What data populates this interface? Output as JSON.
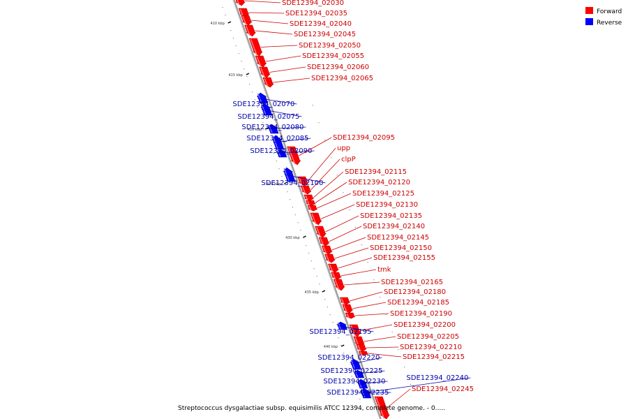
{
  "colors": {
    "forward": "#ff0000",
    "forward_dark": "#b80000",
    "forward_light": "#ff8080",
    "reverse": "#0000ff",
    "reverse_dark": "#0000a8",
    "reverse_light": "#7070ff",
    "backbone": "#9a9a9a",
    "forward_text": "#cc0000",
    "reverse_text": "#0000aa"
  },
  "legend": {
    "forward": "Forward",
    "reverse": "Reverse"
  },
  "caption": "Streptococcus dysgalactiae subsp. equisimilis ATCC 12394, complete genome. - 0.....",
  "ticks": [
    {
      "label": "410 kbp"
    },
    {
      "label": "415 kbp"
    },
    {
      "label": "420 kbp"
    },
    {
      "label": "425 kbp"
    },
    {
      "label": "430 kbp"
    },
    {
      "label": "435 kbp"
    },
    {
      "label": "440 kbp"
    }
  ],
  "genes": [
    {
      "name": "SDE12394_02030",
      "strand": "forward"
    },
    {
      "name": "SDE12394_02035",
      "strand": "forward"
    },
    {
      "name": "SDE12394_02040",
      "strand": "forward"
    },
    {
      "name": "SDE12394_02045",
      "strand": "forward"
    },
    {
      "name": "SDE12394_02050",
      "strand": "forward"
    },
    {
      "name": "SDE12394_02055",
      "strand": "forward"
    },
    {
      "name": "SDE12394_02060",
      "strand": "forward"
    },
    {
      "name": "SDE12394_02065",
      "strand": "forward"
    },
    {
      "name": "SDE12394_02070",
      "strand": "reverse"
    },
    {
      "name": "SDE12394_02075",
      "strand": "reverse"
    },
    {
      "name": "SDE12394_02080",
      "strand": "reverse"
    },
    {
      "name": "SDE12394_02085",
      "strand": "reverse"
    },
    {
      "name": "SDE12394_02090",
      "strand": "reverse"
    },
    {
      "name": "SDE12394_02095",
      "strand": "forward"
    },
    {
      "name": "upp",
      "strand": "forward"
    },
    {
      "name": "clpP",
      "strand": "forward"
    },
    {
      "name": "SDE12394_02100",
      "strand": "reverse"
    },
    {
      "name": "SDE12394_02115",
      "strand": "forward"
    },
    {
      "name": "SDE12394_02120",
      "strand": "forward"
    },
    {
      "name": "SDE12394_02125",
      "strand": "forward"
    },
    {
      "name": "SDE12394_02130",
      "strand": "forward"
    },
    {
      "name": "SDE12394_02135",
      "strand": "forward"
    },
    {
      "name": "SDE12394_02140",
      "strand": "forward"
    },
    {
      "name": "SDE12394_02145",
      "strand": "forward"
    },
    {
      "name": "SDE12394_02150",
      "strand": "forward"
    },
    {
      "name": "SDE12394_02155",
      "strand": "forward"
    },
    {
      "name": "tmk",
      "strand": "forward"
    },
    {
      "name": "SDE12394_02165",
      "strand": "forward"
    },
    {
      "name": "SDE12394_02180",
      "strand": "forward"
    },
    {
      "name": "SDE12394_02185",
      "strand": "forward"
    },
    {
      "name": "SDE12394_02190",
      "strand": "forward"
    },
    {
      "name": "SDE12394_02195",
      "strand": "reverse"
    },
    {
      "name": "SDE12394_02200",
      "strand": "forward"
    },
    {
      "name": "SDE12394_02205",
      "strand": "forward"
    },
    {
      "name": "SDE12394_02210",
      "strand": "forward"
    },
    {
      "name": "SDE12394_02215",
      "strand": "forward"
    },
    {
      "name": "SDE12394_02220",
      "strand": "reverse"
    },
    {
      "name": "SDE12394_02225",
      "strand": "reverse"
    },
    {
      "name": "SDE12394_02230",
      "strand": "reverse"
    },
    {
      "name": "SDE12394_02235",
      "strand": "reverse"
    },
    {
      "name": "SDE12394_02240",
      "strand": "reverse"
    },
    {
      "name": "SDE12394_02245",
      "strand": "forward"
    }
  ]
}
